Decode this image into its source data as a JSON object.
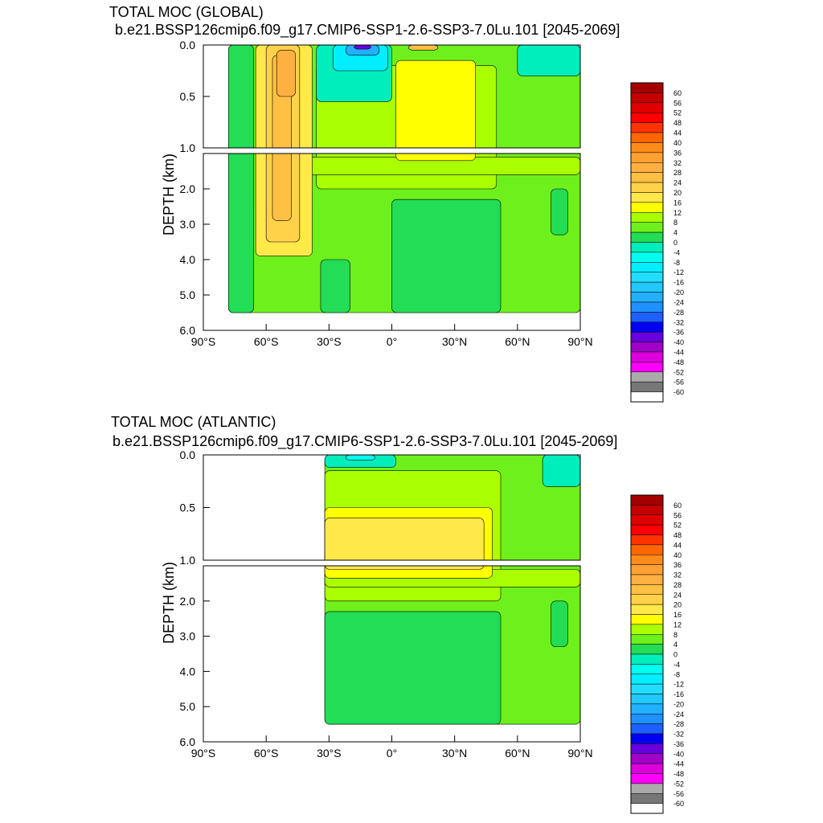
{
  "chart_data": [
    {
      "type": "heatmap",
      "title": "TOTAL MOC (GLOBAL)",
      "subtitle": "b.e21.BSSP126cmip6.f09_g17.CMIP6-SSP1-2.6-SSP3-7.0Lu.101 [2045-2069]",
      "xlabel": "",
      "ylabel": "DEPTH (km)",
      "xlim": [
        -90,
        90
      ],
      "ylim": [
        0.0,
        6.0
      ],
      "depth_break_km": 1.0,
      "x_ticks": [
        -90,
        -60,
        -30,
        0,
        30,
        60,
        90
      ],
      "x_tick_labels": [
        "90°S",
        "60°S",
        "30°S",
        "0°",
        "30°N",
        "60°N",
        "90°N"
      ],
      "y_ticks_upper": [
        0.0,
        0.5,
        1.0
      ],
      "y_tick_labels_upper": [
        "0.0",
        "0.5",
        "1.0"
      ],
      "y_ticks_lower": [
        2.0,
        3.0,
        4.0,
        5.0,
        6.0
      ],
      "y_tick_labels_lower": [
        "2.0",
        "3.0",
        "4.0",
        "5.0",
        "6.0"
      ],
      "colorbar_labels": [
        "60",
        "56",
        "52",
        "48",
        "44",
        "40",
        "36",
        "32",
        "28",
        "24",
        "20",
        "16",
        "12",
        "8",
        "4",
        "0",
        "-4",
        "-8",
        "-12",
        "-16",
        "-20",
        "-24",
        "-28",
        "-32",
        "-36",
        "-40",
        "-44",
        "-48",
        "-52",
        "-56",
        "-60"
      ],
      "regions": [
        {
          "label": "4",
          "extent": [
            -78,
            90,
            0.0,
            5.5
          ]
        },
        {
          "label": "0",
          "extent": [
            -78,
            -66,
            0.0,
            5.5
          ]
        },
        {
          "label": "0",
          "extent": [
            0,
            52,
            2.3,
            5.5
          ]
        },
        {
          "label": "0",
          "extent": [
            -34,
            -20,
            4.0,
            5.5
          ]
        },
        {
          "label": "8",
          "extent": [
            -36,
            50,
            0.2,
            2.0
          ]
        },
        {
          "label": "8",
          "extent": [
            -42,
            90,
            1.1,
            1.6
          ]
        },
        {
          "label": "12",
          "extent": [
            2,
            40,
            0.15,
            1.2
          ]
        },
        {
          "label": "16",
          "extent": [
            -65,
            -38,
            0.0,
            3.9
          ]
        },
        {
          "label": "20",
          "extent": [
            -60,
            -44,
            0.0,
            3.5
          ]
        },
        {
          "label": "24",
          "extent": [
            -57,
            -48,
            0.1,
            2.9
          ]
        },
        {
          "label": "28",
          "extent": [
            -55,
            -46,
            0.05,
            0.5
          ]
        },
        {
          "label": "-4",
          "extent": [
            -36,
            0,
            0.0,
            0.55
          ]
        },
        {
          "label": "-12",
          "extent": [
            -28,
            -2,
            0.0,
            0.25
          ]
        },
        {
          "label": "-24",
          "extent": [
            -22,
            -6,
            0.0,
            0.1
          ]
        },
        {
          "label": "-40",
          "extent": [
            -18,
            -10,
            0.0,
            0.04
          ]
        },
        {
          "label": "24",
          "extent": [
            8,
            22,
            0.0,
            0.05
          ]
        },
        {
          "label": "-4",
          "extent": [
            60,
            90,
            0.0,
            0.3
          ]
        },
        {
          "label": "0",
          "extent": [
            76,
            84,
            2.0,
            3.3
          ]
        }
      ]
    },
    {
      "type": "heatmap",
      "title": "TOTAL MOC (ATLANTIC)",
      "subtitle": "b.e21.BSSP126cmip6.f09_g17.CMIP6-SSP1-2.6-SSP3-7.0Lu.101 [2045-2069]",
      "xlabel": "",
      "ylabel": "DEPTH (km)",
      "xlim": [
        -90,
        90
      ],
      "ylim": [
        0.0,
        6.0
      ],
      "depth_break_km": 1.0,
      "x_ticks": [
        -90,
        -60,
        -30,
        0,
        30,
        60,
        90
      ],
      "x_tick_labels": [
        "90°S",
        "60°S",
        "30°S",
        "0°",
        "30°N",
        "60°N",
        "90°N"
      ],
      "y_ticks_upper": [
        0.0,
        0.5,
        1.0
      ],
      "y_tick_labels_upper": [
        "0.0",
        "0.5",
        "1.0"
      ],
      "y_ticks_lower": [
        2.0,
        3.0,
        4.0,
        5.0,
        6.0
      ],
      "y_tick_labels_lower": [
        "2.0",
        "3.0",
        "4.0",
        "5.0",
        "6.0"
      ],
      "colorbar_labels": [
        "60",
        "56",
        "52",
        "48",
        "44",
        "40",
        "36",
        "32",
        "28",
        "24",
        "20",
        "16",
        "12",
        "8",
        "4",
        "0",
        "-4",
        "-8",
        "-12",
        "-16",
        "-20",
        "-24",
        "-28",
        "-32",
        "-36",
        "-40",
        "-44",
        "-48",
        "-52",
        "-56",
        "-60"
      ],
      "regions": [
        {
          "label": "4",
          "extent": [
            -32,
            90,
            0.0,
            5.5
          ]
        },
        {
          "label": "0",
          "extent": [
            -32,
            52,
            2.3,
            5.5
          ]
        },
        {
          "label": "8",
          "extent": [
            -32,
            52,
            0.15,
            2.0
          ]
        },
        {
          "label": "8",
          "extent": [
            -32,
            90,
            1.1,
            1.6
          ]
        },
        {
          "label": "12",
          "extent": [
            -32,
            48,
            0.5,
            1.35
          ]
        },
        {
          "label": "16",
          "extent": [
            -32,
            44,
            0.6,
            1.1
          ]
        },
        {
          "label": "-4",
          "extent": [
            -32,
            2,
            0.0,
            0.12
          ]
        },
        {
          "label": "-8",
          "extent": [
            -22,
            -8,
            0.0,
            0.05
          ]
        },
        {
          "label": "-4",
          "extent": [
            72,
            90,
            0.0,
            0.3
          ]
        },
        {
          "label": "0",
          "extent": [
            76,
            84,
            2.0,
            3.3
          ]
        }
      ]
    }
  ]
}
